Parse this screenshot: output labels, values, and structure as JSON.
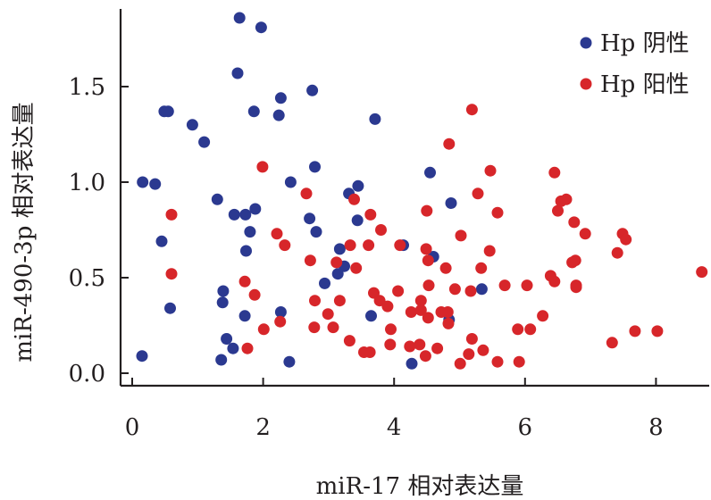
{
  "chart_data": {
    "type": "scatter",
    "title": "",
    "xlabel": "miR-17 相对表达量",
    "ylabel": "miR-490-3p 相对表达量",
    "xlim": [
      0,
      8.8
    ],
    "ylim": [
      -0.07,
      1.9
    ],
    "xticks": [
      0,
      2,
      4,
      6,
      8
    ],
    "xtick_labels": [
      "0",
      "2",
      "4",
      "6",
      "8"
    ],
    "yticks": [
      0.0,
      0.5,
      1.0,
      1.5
    ],
    "ytick_labels": [
      "0.0",
      "0.5",
      "1.0",
      "1.5"
    ],
    "grid": false,
    "legend": "top-right",
    "series": [
      {
        "name": "Hp 阴性",
        "color": "#2b3990",
        "points": [
          [
            1.64,
            1.86
          ],
          [
            1.97,
            1.81
          ],
          [
            1.61,
            1.57
          ],
          [
            2.75,
            1.48
          ],
          [
            2.27,
            1.44
          ],
          [
            0.55,
            1.37
          ],
          [
            0.49,
            1.37
          ],
          [
            1.86,
            1.37
          ],
          [
            2.24,
            1.35
          ],
          [
            3.71,
            1.33
          ],
          [
            0.92,
            1.3
          ],
          [
            1.1,
            1.21
          ],
          [
            2.79,
            1.08
          ],
          [
            4.55,
            1.05
          ],
          [
            2.42,
            1.0
          ],
          [
            0.16,
            1.0
          ],
          [
            0.35,
            0.99
          ],
          [
            3.45,
            0.98
          ],
          [
            3.31,
            0.94
          ],
          [
            1.3,
            0.91
          ],
          [
            4.87,
            0.89
          ],
          [
            1.88,
            0.86
          ],
          [
            1.73,
            0.83
          ],
          [
            1.56,
            0.83
          ],
          [
            2.71,
            0.81
          ],
          [
            3.44,
            0.8
          ],
          [
            2.81,
            0.74
          ],
          [
            1.8,
            0.74
          ],
          [
            0.45,
            0.69
          ],
          [
            4.14,
            0.67
          ],
          [
            3.17,
            0.65
          ],
          [
            1.74,
            0.64
          ],
          [
            4.6,
            0.61
          ],
          [
            3.24,
            0.56
          ],
          [
            3.14,
            0.52
          ],
          [
            2.94,
            0.47
          ],
          [
            5.34,
            0.44
          ],
          [
            1.39,
            0.43
          ],
          [
            1.38,
            0.37
          ],
          [
            0.58,
            0.34
          ],
          [
            2.27,
            0.32
          ],
          [
            1.72,
            0.3
          ],
          [
            3.65,
            0.3
          ],
          [
            4.84,
            0.28
          ],
          [
            1.44,
            0.18
          ],
          [
            1.54,
            0.13
          ],
          [
            0.15,
            0.09
          ],
          [
            1.36,
            0.07
          ],
          [
            2.4,
            0.06
          ],
          [
            4.27,
            0.05
          ]
        ]
      },
      {
        "name": "Hp 阳性",
        "color": "#d7262a",
        "points": [
          [
            5.19,
            1.38
          ],
          [
            4.84,
            1.2
          ],
          [
            1.99,
            1.08
          ],
          [
            5.47,
            1.06
          ],
          [
            6.45,
            1.05
          ],
          [
            2.66,
            0.94
          ],
          [
            5.28,
            0.94
          ],
          [
            3.39,
            0.91
          ],
          [
            6.63,
            0.91
          ],
          [
            6.55,
            0.9
          ],
          [
            4.5,
            0.85
          ],
          [
            6.5,
            0.85
          ],
          [
            0.6,
            0.83
          ],
          [
            5.58,
            0.84
          ],
          [
            3.64,
            0.83
          ],
          [
            6.75,
            0.79
          ],
          [
            3.8,
            0.75
          ],
          [
            2.21,
            0.73
          ],
          [
            6.92,
            0.73
          ],
          [
            7.49,
            0.73
          ],
          [
            5.02,
            0.72
          ],
          [
            7.54,
            0.7
          ],
          [
            2.33,
            0.67
          ],
          [
            3.61,
            0.67
          ],
          [
            3.33,
            0.67
          ],
          [
            4.09,
            0.67
          ],
          [
            4.49,
            0.65
          ],
          [
            5.46,
            0.64
          ],
          [
            4.52,
            0.59
          ],
          [
            2.72,
            0.59
          ],
          [
            6.77,
            0.59
          ],
          [
            6.72,
            0.58
          ],
          [
            3.12,
            0.58
          ],
          [
            7.41,
            0.63
          ],
          [
            3.42,
            0.55
          ],
          [
            4.79,
            0.55
          ],
          [
            5.33,
            0.55
          ],
          [
            0.6,
            0.52
          ],
          [
            6.39,
            0.51
          ],
          [
            8.7,
            0.53
          ],
          [
            6.45,
            0.48
          ],
          [
            1.72,
            0.48
          ],
          [
            5.69,
            0.46
          ],
          [
            6.03,
            0.46
          ],
          [
            4.53,
            0.46
          ],
          [
            6.78,
            0.45
          ],
          [
            4.93,
            0.44
          ],
          [
            5.17,
            0.43
          ],
          [
            4.06,
            0.43
          ],
          [
            3.69,
            0.42
          ],
          [
            1.87,
            0.41
          ],
          [
            6.78,
            0.46
          ],
          [
            4.41,
            0.38
          ],
          [
            2.79,
            0.38
          ],
          [
            3.78,
            0.38
          ],
          [
            3.17,
            0.38
          ],
          [
            3.9,
            0.35
          ],
          [
            4.26,
            0.32
          ],
          [
            4.41,
            0.33
          ],
          [
            4.72,
            0.32
          ],
          [
            4.82,
            0.32
          ],
          [
            2.99,
            0.31
          ],
          [
            6.27,
            0.3
          ],
          [
            4.52,
            0.29
          ],
          [
            2.26,
            0.27
          ],
          [
            4.83,
            0.26
          ],
          [
            3.07,
            0.24
          ],
          [
            2.78,
            0.24
          ],
          [
            2.01,
            0.23
          ],
          [
            5.89,
            0.23
          ],
          [
            6.08,
            0.23
          ],
          [
            3.95,
            0.23
          ],
          [
            7.68,
            0.22
          ],
          [
            8.02,
            0.22
          ],
          [
            5.19,
            0.18
          ],
          [
            3.32,
            0.17
          ],
          [
            3.94,
            0.15
          ],
          [
            4.39,
            0.15
          ],
          [
            4.24,
            0.14
          ],
          [
            7.33,
            0.16
          ],
          [
            4.66,
            0.13
          ],
          [
            5.36,
            0.12
          ],
          [
            1.76,
            0.13
          ],
          [
            3.54,
            0.11
          ],
          [
            3.63,
            0.11
          ],
          [
            5.14,
            0.1
          ],
          [
            5.01,
            0.05
          ],
          [
            5.58,
            0.06
          ],
          [
            5.91,
            0.06
          ],
          [
            4.48,
            0.09
          ]
        ]
      }
    ]
  }
}
